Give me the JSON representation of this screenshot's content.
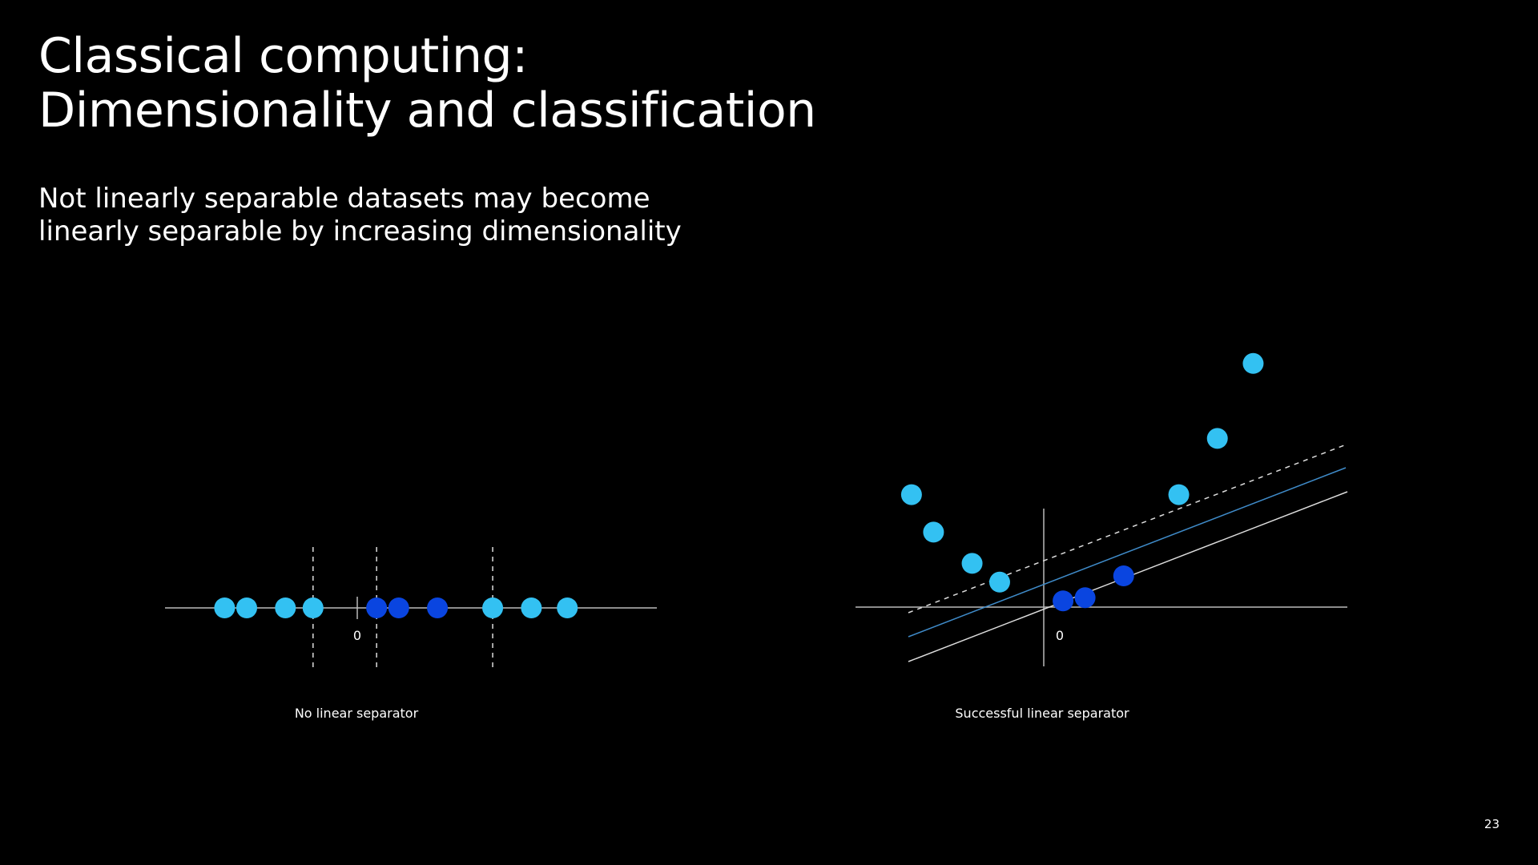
{
  "slide": {
    "title_line1": "Classical computing:",
    "title_line2": "Dimensionality and classification",
    "subtitle_line1": "Not linearly separable datasets may become",
    "subtitle_line2": "linearly separable by increasing dimensionality",
    "page_number": "23"
  },
  "colors": {
    "background": "#000000",
    "class_a": "#33C1F2",
    "class_b": "#0A45E0",
    "axis": "#BBBBBB",
    "separator_blue": "#3F8BC9",
    "separator_white": "#DDDDDD"
  },
  "left_diagram": {
    "caption": "No linear separator",
    "origin_label": "0",
    "points": [
      {
        "x": -4.8,
        "class": "a"
      },
      {
        "x": -4.0,
        "class": "a"
      },
      {
        "x": -2.6,
        "class": "a"
      },
      {
        "x": -1.6,
        "class": "a"
      },
      {
        "x": 0.7,
        "class": "b"
      },
      {
        "x": 1.5,
        "class": "b"
      },
      {
        "x": 2.9,
        "class": "b"
      },
      {
        "x": 4.9,
        "class": "a"
      },
      {
        "x": 6.3,
        "class": "a"
      },
      {
        "x": 7.6,
        "class": "a"
      }
    ],
    "dashed_separators": [
      -1.6,
      0.7,
      4.9
    ]
  },
  "right_diagram": {
    "caption": "Successful linear separator",
    "origin_label": "0",
    "points": [
      {
        "x": -4.8,
        "y": 3.6,
        "class": "a"
      },
      {
        "x": -4.0,
        "y": 2.4,
        "class": "a"
      },
      {
        "x": -2.6,
        "y": 1.4,
        "class": "a"
      },
      {
        "x": -1.6,
        "y": 0.8,
        "class": "a"
      },
      {
        "x": 0.7,
        "y": 0.2,
        "class": "b"
      },
      {
        "x": 1.5,
        "y": 0.3,
        "class": "b"
      },
      {
        "x": 2.9,
        "y": 1.0,
        "class": "b"
      },
      {
        "x": 4.9,
        "y": 3.6,
        "class": "a"
      },
      {
        "x": 6.3,
        "y": 5.4,
        "class": "a"
      },
      {
        "x": 7.6,
        "y": 7.8,
        "class": "a"
      }
    ]
  }
}
